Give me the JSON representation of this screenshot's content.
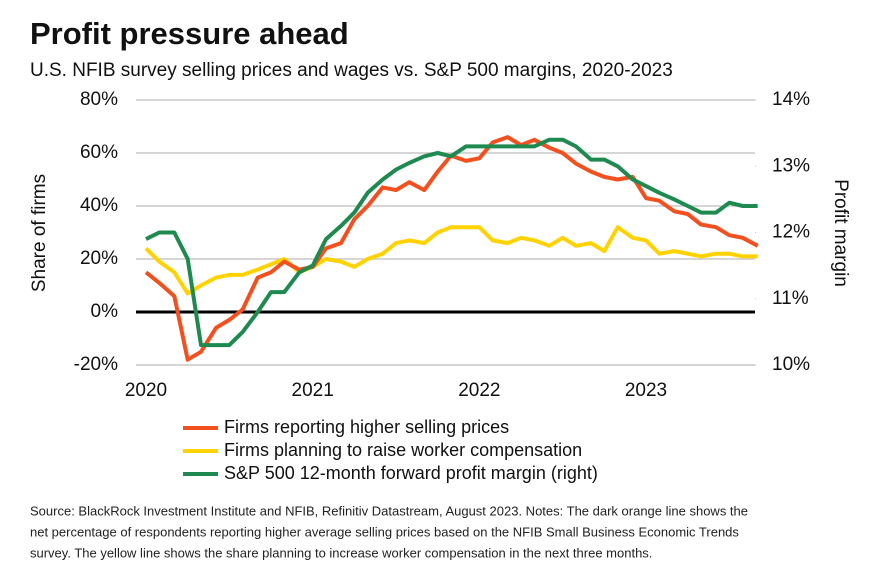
{
  "chart_data": {
    "type": "line",
    "title": "Profit pressure ahead",
    "subtitle": "U.S. NFIB survey selling prices and wages vs. S&P 500 margins, 2020-2023",
    "y_label": "Share of firms",
    "y2_label": "Profit margin",
    "x": [
      2020,
      2020.08,
      2020.17,
      2020.25,
      2020.33,
      2020.42,
      2020.5,
      2020.58,
      2020.67,
      2020.75,
      2020.83,
      2020.92,
      2021,
      2021.08,
      2021.17,
      2021.25,
      2021.33,
      2021.42,
      2021.5,
      2021.58,
      2021.67,
      2021.75,
      2021.83,
      2021.92,
      2022,
      2022.08,
      2022.17,
      2022.25,
      2022.33,
      2022.42,
      2022.5,
      2022.58,
      2022.67,
      2022.75,
      2022.83,
      2022.92,
      2023,
      2023.08,
      2023.17,
      2023.25,
      2023.33,
      2023.42,
      2023.5,
      2023.58,
      2023.67
    ],
    "xlim": [
      2020,
      2023.75
    ],
    "xticks": [
      2020,
      2021,
      2022,
      2023
    ],
    "ylim": [
      -20,
      80
    ],
    "yticks": [
      {
        "value": -20,
        "label": "-20%"
      },
      {
        "value": 0,
        "label": "0%"
      },
      {
        "value": 20,
        "label": "20%"
      },
      {
        "value": 40,
        "label": "40%"
      },
      {
        "value": 60,
        "label": "60%"
      },
      {
        "value": 80,
        "label": "80%"
      }
    ],
    "y2lim": [
      10,
      14
    ],
    "y2ticks": [
      {
        "value": 10,
        "label": "10%"
      },
      {
        "value": 11,
        "label": "11%"
      },
      {
        "value": 12,
        "label": "12%"
      },
      {
        "value": 13,
        "label": "13%"
      },
      {
        "value": 14,
        "label": "14%"
      }
    ],
    "grid": true,
    "series": [
      {
        "name": "Firms reporting higher selling prices",
        "color": "#f2501f",
        "values": [
          15,
          11,
          6,
          -18,
          -15,
          -6,
          -3,
          1,
          13,
          15,
          19,
          16,
          17,
          24,
          26,
          35,
          40,
          47,
          46,
          49,
          46,
          53,
          59,
          57,
          58,
          64,
          66,
          63,
          65,
          62,
          60,
          56,
          53,
          51,
          50,
          51,
          43,
          42,
          38,
          37,
          33,
          32,
          29,
          28,
          25
        ]
      },
      {
        "name": "Firms planning to raise worker compensation",
        "color": "#ffd200",
        "values": [
          24,
          19,
          15,
          7,
          10,
          13,
          14,
          14,
          16,
          18,
          20,
          15,
          17,
          20,
          19,
          17,
          20,
          22,
          26,
          27,
          26,
          30,
          32,
          32,
          32,
          27,
          26,
          28,
          27,
          25,
          28,
          25,
          26,
          23,
          32,
          28,
          27,
          22,
          23,
          22,
          21,
          22,
          22,
          21,
          21
        ]
      },
      {
        "name": "S&P 500 12-month forward profit margin (right)",
        "color": "#1e8a50",
        "axis": "y2",
        "values": [
          11.9,
          12.0,
          12.0,
          11.6,
          10.3,
          10.3,
          10.3,
          10.5,
          10.8,
          11.1,
          11.1,
          11.4,
          11.5,
          11.9,
          12.1,
          12.3,
          12.6,
          12.8,
          12.95,
          13.05,
          13.15,
          13.2,
          13.15,
          13.3,
          13.3,
          13.3,
          13.3,
          13.3,
          13.3,
          13.4,
          13.4,
          13.3,
          13.1,
          13.1,
          13.0,
          12.8,
          12.7,
          12.6,
          12.5,
          12.4,
          12.3,
          12.3,
          12.45,
          12.4,
          12.4
        ]
      }
    ],
    "source": [
      "Source: BlackRock Investment Institute and NFIB, Refinitiv Datastream,  August 2023. Notes: The dark orange line shows the",
      "net percentage of respondents reporting higher average selling prices based on the NFIB Small Business Economic Trends",
      "survey. The yellow line shows the share planning to increase worker compensation in the next three months."
    ]
  }
}
